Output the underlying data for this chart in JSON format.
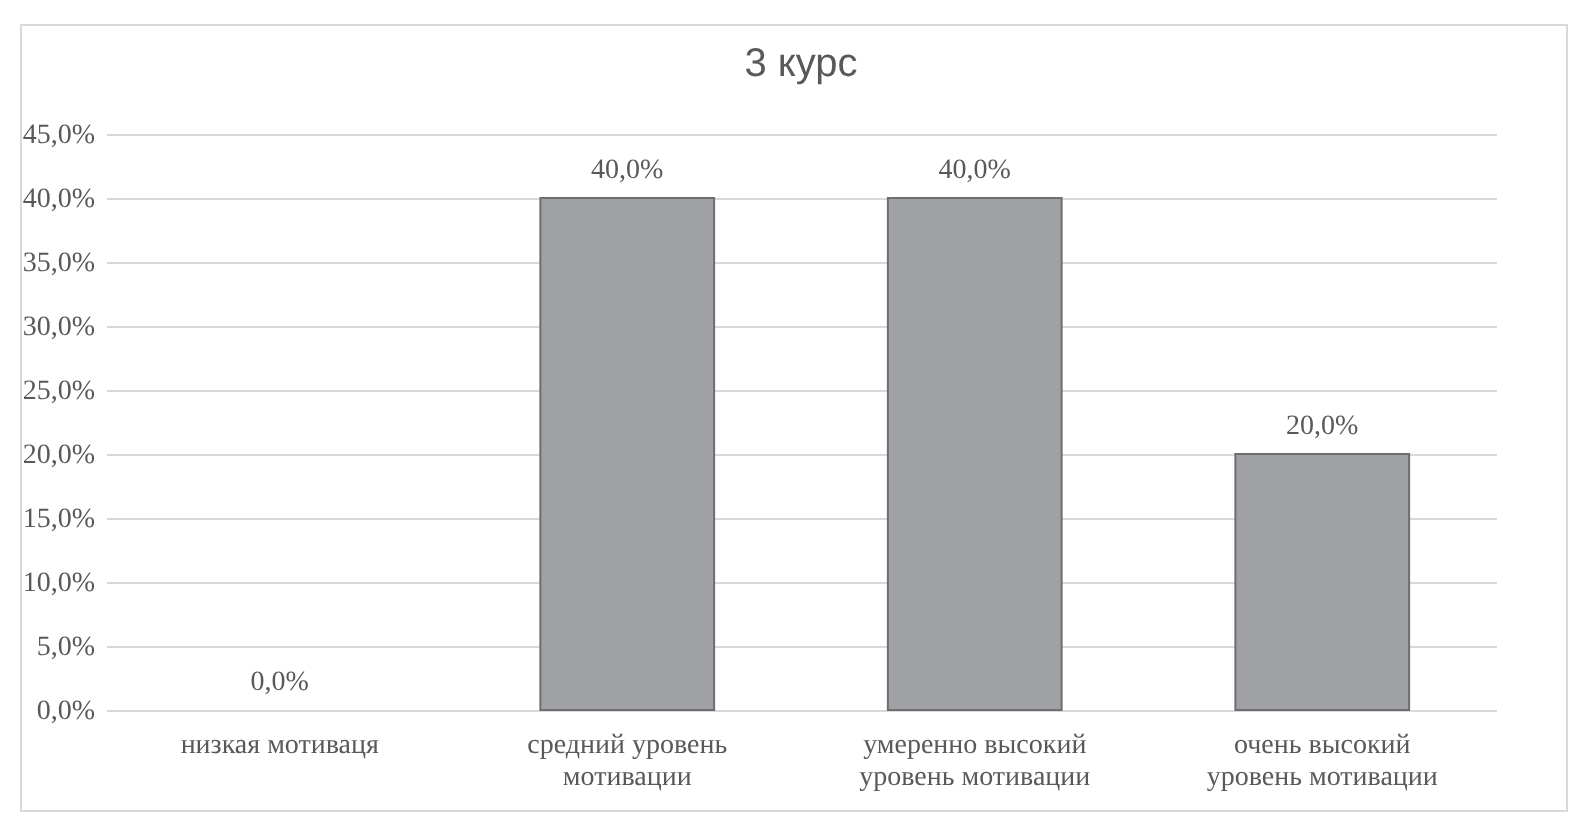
{
  "chart_data": {
    "type": "bar",
    "title": "3 курс",
    "categories": [
      "низкая мотиваця",
      "средний уровень мотивации",
      "умеренно высокий уровень мотивации",
      "очень высокий уровень мотивации"
    ],
    "values": [
      0,
      40,
      40,
      20
    ],
    "value_labels": [
      "0,0%",
      "40,0%",
      "40,0%",
      "20,0%"
    ],
    "color": "#a0a1a5",
    "ylim": [
      0,
      45
    ],
    "yticks": [
      {
        "value": 0,
        "label": "0,0%"
      },
      {
        "value": 5,
        "label": "5,0%"
      },
      {
        "value": 10,
        "label": "10,0%"
      },
      {
        "value": 15,
        "label": "15,0%"
      },
      {
        "value": 20,
        "label": "20,0%"
      },
      {
        "value": 25,
        "label": "25,0%"
      },
      {
        "value": 30,
        "label": "30,0%"
      },
      {
        "value": 35,
        "label": "35,0%"
      },
      {
        "value": 40,
        "label": "40,0%"
      },
      {
        "value": 45,
        "label": "45,0%"
      }
    ],
    "grid": true
  }
}
